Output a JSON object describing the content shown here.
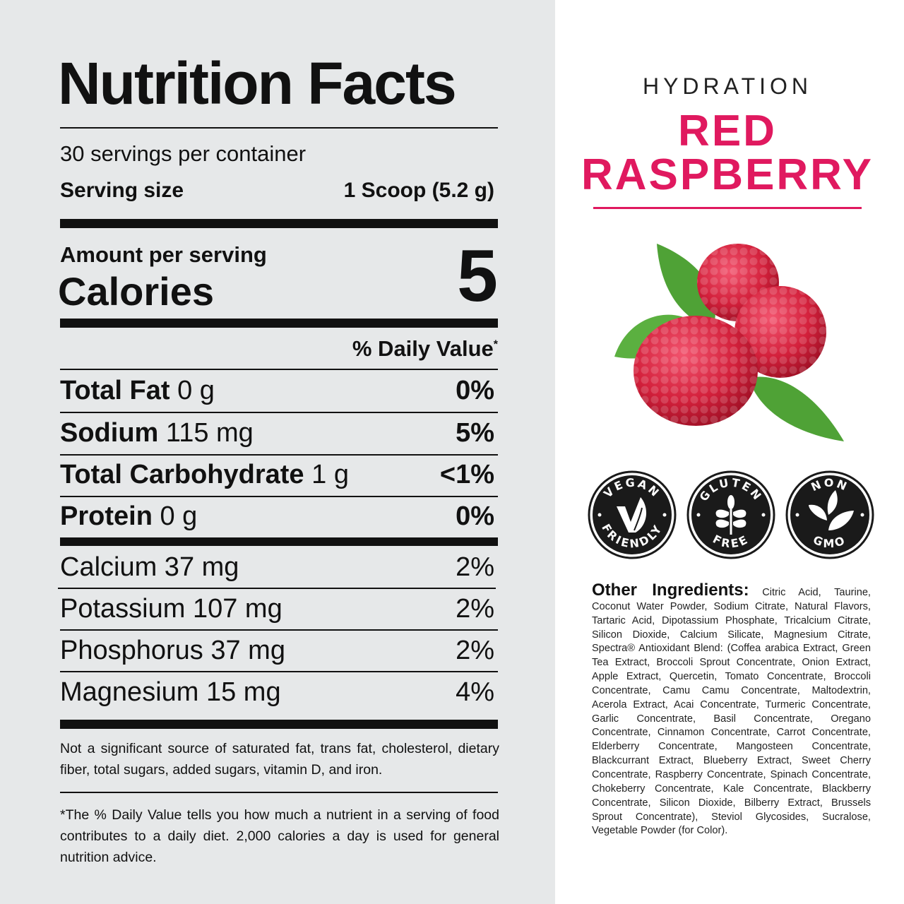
{
  "nutrition": {
    "title": "Nutrition Facts",
    "servings": "30 servings per container",
    "serving_size_label": "Serving size",
    "serving_size_value": "1 Scoop (5.2 g)",
    "amount_per_serving": "Amount per serving",
    "calories_label": "Calories",
    "calories_value": "5",
    "daily_value_header": "% Daily Value",
    "daily_value_asterisk": "*",
    "nutrients": [
      {
        "name": "Total Fat",
        "amount": "0 g",
        "dv": "0%"
      },
      {
        "name": "Sodium",
        "amount": "115 mg",
        "dv": "5%"
      },
      {
        "name": "Total Carbohydrate",
        "amount": "1 g",
        "dv": "<1%"
      },
      {
        "name": "Protein",
        "amount": "0 g",
        "dv": "0%"
      }
    ],
    "minerals": [
      {
        "label": "Calcium 37 mg",
        "dv": "2%"
      },
      {
        "label": "Potassium 107 mg",
        "dv": "2%"
      },
      {
        "label": "Phosphorus 37 mg",
        "dv": "2%"
      },
      {
        "label": "Magnesium 15 mg",
        "dv": "4%"
      }
    ],
    "footnote_1": "Not a significant source of saturated fat, trans fat, cholesterol, dietary fiber, total sugars, added sugars, vitamin D, and iron.",
    "footnote_2": "*The % Daily Value tells you how much a nutrient in a serving of food contributes to a daily diet. 2,000 calories a day is used for general nutrition advice."
  },
  "product": {
    "line": "HYDRATION",
    "flavor_1": "RED",
    "flavor_2": "RASPBERRY",
    "accent_color": "#e0195f"
  },
  "badges": [
    {
      "icon": "vegan-leaf-check-icon",
      "top": "VEGAN",
      "bottom": "FRIENDLY"
    },
    {
      "icon": "wheat-icon",
      "top": "GLUTEN",
      "bottom": "FREE"
    },
    {
      "icon": "leaves-icon",
      "top": "NON",
      "bottom": "GMO"
    }
  ],
  "ingredients": {
    "label": "Other Ingredients:",
    "text": "Citric Acid, Taurine, Coconut Water Powder, Sodium Citrate, Natural Flavors, Tartaric Acid, Dipotassium Phosphate, Tricalcium Citrate, Silicon Dioxide, Calcium Silicate, Magnesium Citrate, Spectra® Antioxidant Blend: (Coffea arabica Extract, Green Tea Extract, Broccoli Sprout Concentrate, Onion Extract, Apple Extract, Quercetin, Tomato Concentrate, Broccoli Concentrate, Camu Camu Concentrate, Maltodextrin, Acerola Extract, Acai Concentrate, Turmeric Concentrate, Garlic Concentrate, Basil Concentrate, Oregano Concentrate, Cinnamon Concentrate, Carrot Concentrate, Elderberry Concentrate, Mangosteen Concentrate, Blackcurrant Extract, Blueberry Extract, Sweet Cherry Concentrate, Raspberry Concentrate, Spinach Concentrate, Chokeberry Concentrate, Kale Concentrate, Blackberry Concentrate, Silicon Dioxide, Bilberry Extract, Brussels Sprout Concentrate), Steviol Glycosides, Sucralose, Vegetable Powder (for Color)."
  }
}
